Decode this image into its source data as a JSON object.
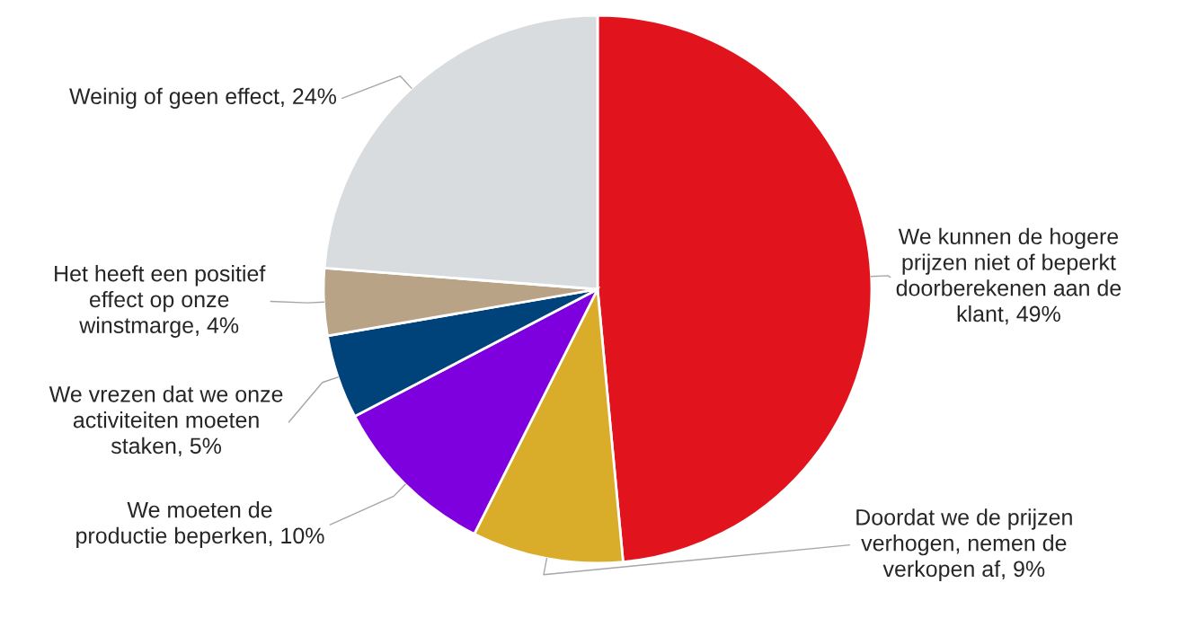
{
  "chart_data": {
    "type": "pie",
    "categories": [
      "We kunnen de hogere\nprijzen niet of beperkt\ndoorberekenen aan de\nklant",
      "Doordat we de prijzen\nverhogen, nemen de\nverkopen af",
      "We moeten de\nproductie beperken",
      "We vrezen dat we onze\nactiviteiten moeten\nstaken",
      "Het heeft een positief\neffect op onze\nwinstmarge",
      "Weinig of geen effect"
    ],
    "values": [
      49,
      9,
      10,
      5,
      4,
      24
    ],
    "value_labels": [
      "49%",
      "9%",
      "10%",
      "5%",
      "4%",
      "24%"
    ],
    "colors": [
      "#e1141e",
      "#d9ac2a",
      "#7f00de",
      "#00427a",
      "#b9a386",
      "#d9dcde"
    ],
    "legend": false
  }
}
